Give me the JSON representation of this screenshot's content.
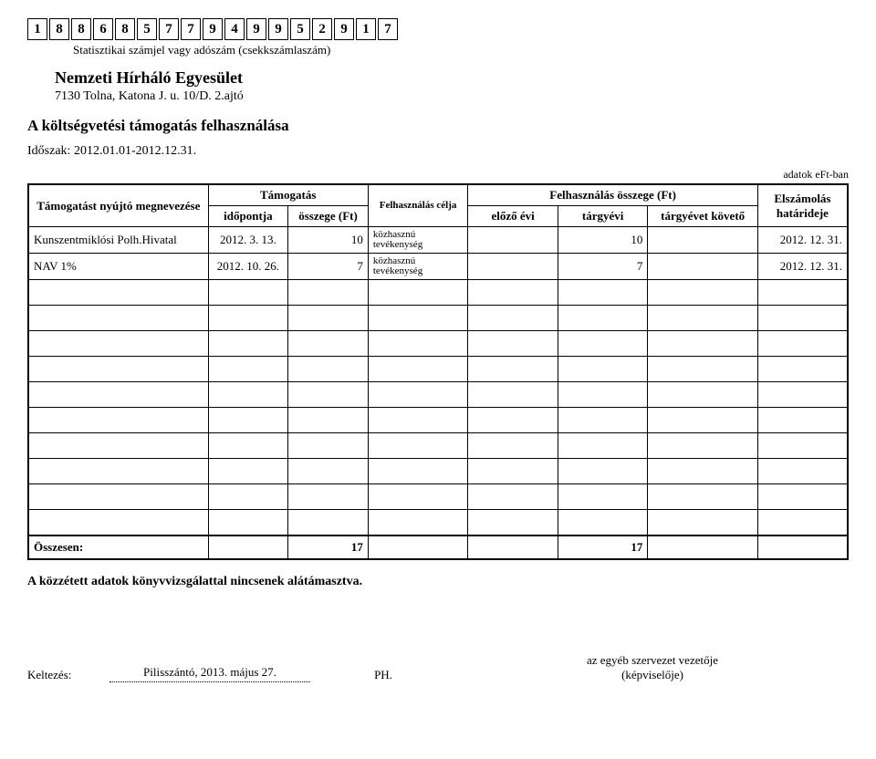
{
  "header": {
    "code_digits": [
      "1",
      "8",
      "8",
      "6",
      "8",
      "5",
      "7",
      "7",
      "9",
      "4",
      "9",
      "9",
      "5",
      "2",
      "9",
      "1",
      "7"
    ],
    "code_subtitle": "Statisztikai számjel vagy adószám (csekkszámlaszám)",
    "org_name": "Nemzeti Hírháló Egyesület",
    "org_address": "7130 Tolna, Katona J. u. 10/D. 2.ajtó"
  },
  "section": {
    "title": "A költségvetési támogatás felhasználása",
    "period_label": "Időszak:",
    "period_value": "2012.01.01-2012.12.31.",
    "units": "adatok eFt-ban"
  },
  "table": {
    "headers": {
      "provider": "Támogatást nyújtó megnevezése",
      "grant": "Támogatás",
      "grant_date": "időpontja",
      "grant_amount": "összege (Ft)",
      "purpose": "Felhasználás célja",
      "usage": "Felhasználás összege (Ft)",
      "usage_prev": "előző évi",
      "usage_curr": "tárgyévi",
      "usage_next": "tárgyévet követő",
      "deadline": "Elszámolás határideje"
    },
    "rows": [
      {
        "name": "Kunszentmiklósi Polh.Hivatal",
        "date": "2012. 3. 13.",
        "amount": "10",
        "purpose": "közhasznú tevékenység",
        "prev": "",
        "curr": "10",
        "next": "",
        "deadline": "2012. 12. 31."
      },
      {
        "name": "NAV 1%",
        "date": "2012. 10. 26.",
        "amount": "7",
        "purpose": "közhasznú tevékenység",
        "prev": "",
        "curr": "7",
        "next": "",
        "deadline": "2012. 12. 31."
      }
    ],
    "empty_row_count": 10,
    "total": {
      "label": "Összesen:",
      "amount": "17",
      "curr": "17"
    }
  },
  "note": "A közzétett adatok könyvvizsgálattal nincsenek alátámasztva.",
  "footer": {
    "kelt_label": "Keltezés:",
    "kelt_value": "Pilisszántó, 2013. május 27.",
    "ph": "PH.",
    "sig_line1": "az egyéb szervezet vezetője",
    "sig_line2": "(képviselője)"
  },
  "styles": {
    "background": "#ffffff",
    "text_color": "#000000",
    "border_color": "#000000",
    "font_family": "Times New Roman"
  }
}
